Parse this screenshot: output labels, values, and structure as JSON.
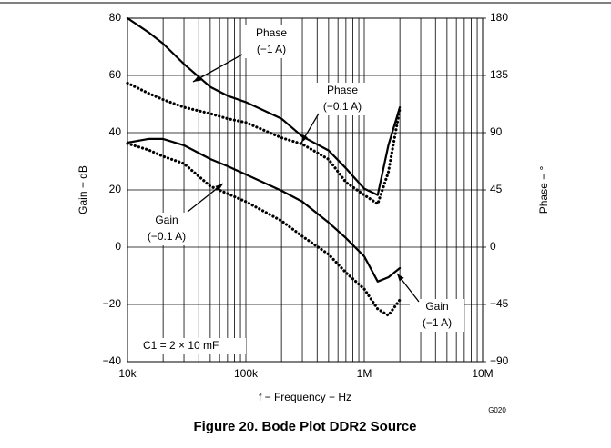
{
  "chart_data": {
    "type": "line",
    "title": "Figure 20. Bode Plot DDR2 Source",
    "x_label": "f − Frequency − Hz",
    "y_label": "Gain − dB",
    "y2_label": "Phase − °",
    "log_x": true,
    "grid": true,
    "x": [
      10000,
      15000,
      20000,
      30000,
      50000,
      70000,
      100000,
      200000,
      300000,
      500000,
      700000,
      1000000,
      1300000,
      1600000,
      2000000
    ],
    "series": [
      {
        "name": "Gain (−1 A)",
        "color": "#000000",
        "dash": "solid",
        "values": [
          36.5,
          37.8,
          37.8,
          35.6,
          30.8,
          28.3,
          25.4,
          19.7,
          15.9,
          8.6,
          3.2,
          -3.2,
          -12,
          -10.5,
          -7.3
        ]
      },
      {
        "name": "Gain (−0.1 A)",
        "color": "#000000",
        "dash": "dotted",
        "values": [
          36.2,
          34,
          31.7,
          29.2,
          21.3,
          18.7,
          15.9,
          9.2,
          3.8,
          -2.5,
          -8.9,
          -14.6,
          -21.6,
          -23.8,
          -18.4
        ]
      },
      {
        "name": "Phase (−1 A)",
        "color": "#000000",
        "dash": "solid",
        "axis": "y2",
        "values": [
          180,
          169,
          160,
          144,
          126,
          119,
          114,
          101,
          87,
          76,
          62,
          46,
          41,
          80,
          110
        ]
      },
      {
        "name": "Phase (−0.1 A)",
        "color": "#000000",
        "dash": "dotted",
        "axis": "y2",
        "values": [
          129,
          121,
          116,
          110,
          105,
          101,
          98,
          86,
          81,
          69,
          51,
          41,
          34,
          59,
          109
        ]
      }
    ],
    "xlim": [
      10000,
      10000000
    ],
    "xticks": [
      {
        "value": 10000,
        "label": "10k"
      },
      {
        "value": 100000,
        "label": "100k"
      },
      {
        "value": 1000000,
        "label": "1M"
      },
      {
        "value": 10000000,
        "label": "10M"
      }
    ],
    "ylim": [
      -40,
      80
    ],
    "yticks": [
      {
        "value": -40,
        "label": "−40"
      },
      {
        "value": -20,
        "label": "−20"
      },
      0,
      20,
      40,
      60,
      80
    ],
    "y2lim": [
      -90,
      180
    ],
    "y2ticks": [
      {
        "value": -90,
        "label": "−90"
      },
      {
        "value": -45,
        "label": "−45"
      },
      0,
      45,
      90,
      135,
      180
    ],
    "annotations": [
      {
        "lines": [
          "Phase",
          "(−1 A)"
        ]
      },
      {
        "lines": [
          "Phase",
          "(−0.1 A)"
        ]
      },
      {
        "lines": [
          "Gain",
          "(−0.1 A)"
        ]
      },
      {
        "lines": [
          "Gain",
          "(−1 A)"
        ]
      }
    ],
    "note": "C1 = 2 × 10 mF",
    "code": "G020"
  }
}
